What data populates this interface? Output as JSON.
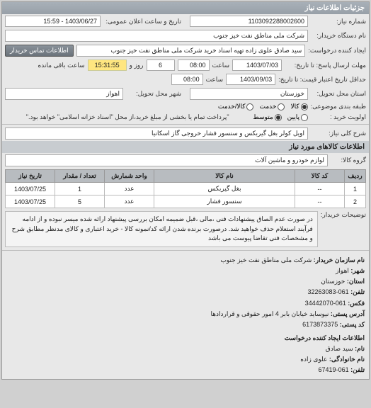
{
  "panel": {
    "title": "جزئیات اطلاعات نیاز"
  },
  "header": {
    "req_no_label": "شماره نیاز:",
    "req_no": "1103092288002600",
    "announce_label": "تاریخ و ساعت اعلان عمومی:",
    "announce_value": "1403/06/27 - 15:59",
    "buyer_device_label": "نام دستگاه خریدار:",
    "buyer_device": "شرکت ملی مناطق نفت خیز جنوب",
    "creator_label": "ایجاد کننده درخواست:",
    "creator": "سید صادق علوی زاده  تهیه اسناد خرید  شرکت ملی مناطق نفت خیز جنوب",
    "contact_btn": "اطلاعات تماس خریدار",
    "deadline_send_label": "مهلت ارسال پاسخ: تا تاریخ:",
    "deadline_send_date": "1403/07/03",
    "deadline_send_time_label": "ساعت",
    "deadline_send_time": "08:00",
    "remaining_days_label": "روز و",
    "remaining_days": "6",
    "remaining_time_label": "ساعت باقی مانده",
    "remaining_time": "15:31:55",
    "validity_label": "حداقل تاریخ اعتبار قیمت: تا تاریخ:",
    "validity_date": "1403/09/03",
    "validity_time_label": "ساعت",
    "validity_time": "08:00",
    "province_label": "استان محل تحویل:",
    "province": "خوزستان",
    "city_label": "شهر محل تحویل:",
    "city": "اهواز",
    "subject_group_label": "طبقه بندی موضوعی:",
    "radio_goods": "کالا",
    "radio_service": "خدمت",
    "radio_goods_service": "کالا/خدمت",
    "priority_label": "اولویت خرید :",
    "radio_low": "پایین",
    "radio_mid": "متوسط",
    "note_text": "\"پرداخت تمام یا بخشی از مبلغ خرید،از محل \"اسناد خزانه اسلامی\" خواهد بود.\"",
    "keyword_label": "شرح کلی نیاز:",
    "keyword": "اویل کولر بغل گیربکس و سنسور فشار خروجی گاز اسکانیا"
  },
  "goods_section": {
    "title": "اطلاعات کالاهای مورد نیاز"
  },
  "group_row": {
    "label": "گروه کالا:",
    "value": "لوازم خودرو و ماشین آلات"
  },
  "table": {
    "columns": [
      "ردیف",
      "کد کالا",
      "نام کالا",
      "واحد شمارش",
      "تعداد / مقدار",
      "تاریخ نیاز"
    ],
    "rows": [
      [
        "1",
        "--",
        "بغل گیربکس",
        "عدد",
        "1",
        "1403/07/25"
      ],
      [
        "2",
        "--",
        "سنسور فشار",
        "عدد",
        "5",
        "1403/07/25"
      ]
    ],
    "col_widths": [
      "30px",
      "70px",
      "auto",
      "70px",
      "70px",
      "70px"
    ]
  },
  "buyer_note": {
    "label": "توضیحات خریدار:",
    "text": "در صورت عدم الصاق پیشنهادات فنی ،مالی ،قبل ضمیمه امکان بررسی پیشنهاد ارائه شده میسر نبوده و از ادامه فرآیند استعلام حذف خواهید شد. درصورت برنده شدن ارائه کد/نمونه کالا - خرید اعتباری و کالای مدنظر مطابق شرح و مشخصات فنی تقاضا پیوست می باشد"
  },
  "footer": {
    "org_name_label": "نام سازمان خریدار:",
    "org_name": "شرکت ملی مناطق نفت خیز جنوب",
    "city_label": "شهر:",
    "city": "اهواز",
    "province_label": "استان:",
    "province": "خوزستان",
    "phone_label": "تلفن:",
    "phone": "061-32263083",
    "fax_label": "فکس:",
    "fax": "061-34442070",
    "address_label": "آدرس پستی:",
    "address": "نیوساید خیابان بابر 4 امور حقوقی و قراردادها",
    "postal_label": "کد پستی:",
    "postal": "6173873375",
    "creator_section": "اطلاعات ایجاد کننده درخواست",
    "name_label": "نام:",
    "name": "سید صادق",
    "family_label": "نام خانوادگی:",
    "family": "علوی زاده",
    "tel_label": "تلفن:",
    "tel": "061-67419"
  }
}
